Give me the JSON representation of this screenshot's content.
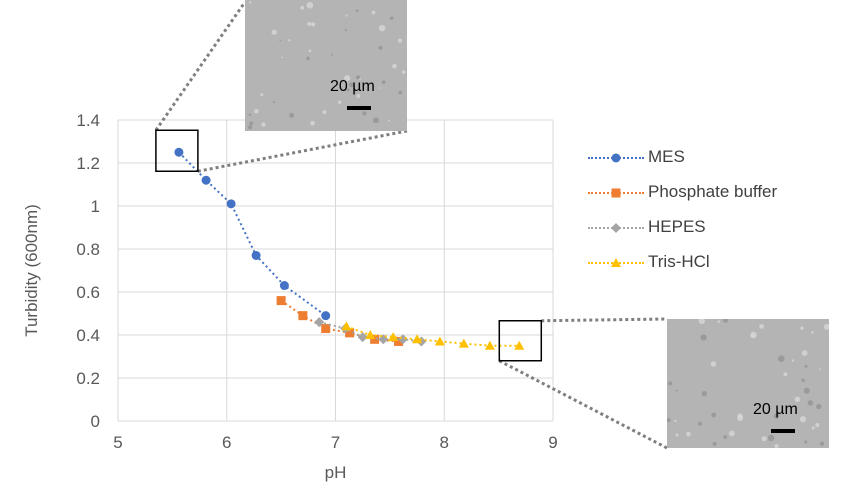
{
  "chart_data": {
    "type": "scatter",
    "title": "",
    "xlabel": "pH",
    "ylabel": "Turbidity (600nm)",
    "xlim": [
      5,
      9
    ],
    "ylim": [
      0,
      1.4
    ],
    "xticks": [
      "5",
      "6",
      "7",
      "8",
      "9"
    ],
    "yticks": [
      "0",
      "0.2",
      "0.4",
      "0.6",
      "0.8",
      "1",
      "1.2",
      "1.4"
    ],
    "grid": true,
    "legend_position": "right",
    "series": [
      {
        "name": "MES",
        "color": "#4472C4",
        "marker": "circle",
        "line": "dotted",
        "x": [
          5.56,
          5.81,
          6.04,
          6.27,
          6.53,
          6.91
        ],
        "y": [
          1.25,
          1.12,
          1.01,
          0.77,
          0.63,
          0.49
        ]
      },
      {
        "name": "Phosphate buffer",
        "color": "#ED7D31",
        "marker": "square",
        "line": "dotted",
        "x": [
          6.5,
          6.7,
          6.91,
          7.13,
          7.36,
          7.58
        ],
        "y": [
          0.56,
          0.49,
          0.43,
          0.41,
          0.38,
          0.37
        ]
      },
      {
        "name": "HEPES",
        "color": "#A5A5A5",
        "marker": "diamond",
        "line": "dotted",
        "x": [
          6.85,
          7.09,
          7.25,
          7.44,
          7.62,
          7.79
        ],
        "y": [
          0.46,
          0.43,
          0.39,
          0.38,
          0.38,
          0.37
        ]
      },
      {
        "name": "Tris-HCl",
        "color": "#FFC000",
        "marker": "triangle",
        "line": "dotted",
        "x": [
          7.1,
          7.32,
          7.53,
          7.75,
          7.96,
          8.18,
          8.42,
          8.69
        ],
        "y": [
          0.44,
          0.4,
          0.39,
          0.38,
          0.37,
          0.36,
          0.35,
          0.35
        ]
      }
    ],
    "annotations": [
      {
        "type": "highlight-box",
        "at_point": [
          5.56,
          1.25
        ]
      },
      {
        "type": "highlight-box",
        "at_point": [
          8.69,
          0.35
        ]
      }
    ],
    "insets": [
      {
        "scale_label": "20 µm"
      },
      {
        "scale_label": "20 µm"
      }
    ]
  }
}
